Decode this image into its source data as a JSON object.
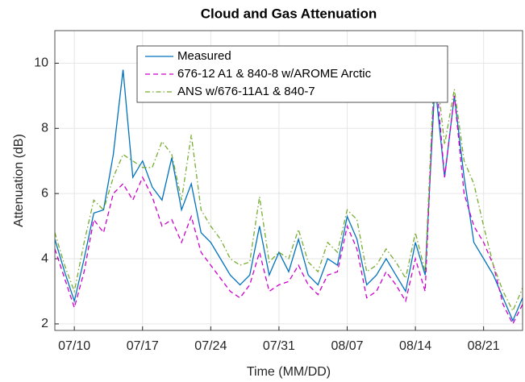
{
  "chart_data": {
    "type": "line",
    "title": "Cloud and Gas Attenuation",
    "xlabel": "Time (MM/DD)",
    "ylabel": "Attenuation (dB)",
    "x": [
      "07/08",
      "07/09",
      "07/10",
      "07/11",
      "07/12",
      "07/13",
      "07/14",
      "07/15",
      "07/16",
      "07/17",
      "07/18",
      "07/19",
      "07/20",
      "07/21",
      "07/22",
      "07/23",
      "07/24",
      "07/25",
      "07/26",
      "07/27",
      "07/28",
      "07/29",
      "07/30",
      "07/31",
      "08/01",
      "08/02",
      "08/03",
      "08/04",
      "08/05",
      "08/06",
      "08/07",
      "08/08",
      "08/09",
      "08/10",
      "08/11",
      "08/12",
      "08/13",
      "08/14",
      "08/15",
      "08/16",
      "08/17",
      "08/18",
      "08/19",
      "08/20",
      "08/21",
      "08/22",
      "08/23",
      "08/24",
      "08/25"
    ],
    "series": [
      {
        "name": "Measured",
        "color": "#0072bd",
        "dash": "solid",
        "values": [
          4.6,
          3.6,
          2.7,
          4.0,
          5.4,
          5.5,
          7.2,
          9.8,
          6.5,
          7.0,
          6.2,
          5.8,
          7.1,
          5.5,
          6.3,
          4.8,
          4.5,
          4.0,
          3.5,
          3.2,
          3.5,
          5.0,
          3.5,
          4.2,
          3.6,
          4.6,
          3.5,
          3.2,
          4.0,
          3.8,
          5.3,
          4.6,
          3.2,
          3.5,
          4.0,
          3.5,
          3.0,
          4.5,
          3.5,
          9.4,
          6.5,
          9.0,
          6.5,
          4.5,
          4.0,
          3.5,
          2.8,
          2.1,
          2.8
        ]
      },
      {
        "name": "676-12 A1 & 840-8 w/AROME Arctic",
        "color": "#cc00cc",
        "dash": "dashed",
        "values": [
          4.3,
          3.4,
          2.5,
          3.6,
          5.2,
          4.8,
          6.0,
          6.3,
          5.8,
          6.5,
          5.9,
          5.0,
          5.2,
          4.5,
          5.3,
          4.2,
          3.8,
          3.4,
          3.0,
          2.8,
          3.2,
          4.2,
          3.0,
          3.2,
          3.3,
          3.8,
          3.2,
          2.9,
          3.5,
          3.6,
          5.0,
          4.3,
          2.8,
          3.0,
          3.6,
          3.2,
          2.7,
          4.0,
          3.0,
          10.0,
          6.5,
          9.0,
          6.0,
          5.0,
          4.5,
          3.8,
          2.6,
          2.0,
          2.6
        ]
      },
      {
        "name": "ANS w/676-11A1 & 840-7",
        "color": "#77ac30",
        "dash": "dashdot",
        "values": [
          4.8,
          3.8,
          3.0,
          4.5,
          5.8,
          5.5,
          6.5,
          7.2,
          7.0,
          6.8,
          6.8,
          7.6,
          7.2,
          5.8,
          7.8,
          5.5,
          5.0,
          4.6,
          4.0,
          3.8,
          3.9,
          5.9,
          3.9,
          4.2,
          4.0,
          4.9,
          3.9,
          3.6,
          4.5,
          4.2,
          5.5,
          5.2,
          3.6,
          3.8,
          4.3,
          3.9,
          3.4,
          4.8,
          3.6,
          10.2,
          7.5,
          9.2,
          7.0,
          6.3,
          5.0,
          3.8,
          3.0,
          2.4,
          3.1
        ]
      }
    ],
    "xlim": [
      "07/08",
      "08/25"
    ],
    "xticks": [
      "07/10",
      "07/17",
      "07/24",
      "07/31",
      "08/07",
      "08/14",
      "08/21"
    ],
    "ylim": [
      1.8,
      11
    ],
    "yticks": [
      2,
      4,
      6,
      8,
      10
    ],
    "grid": true,
    "legend": "north"
  }
}
